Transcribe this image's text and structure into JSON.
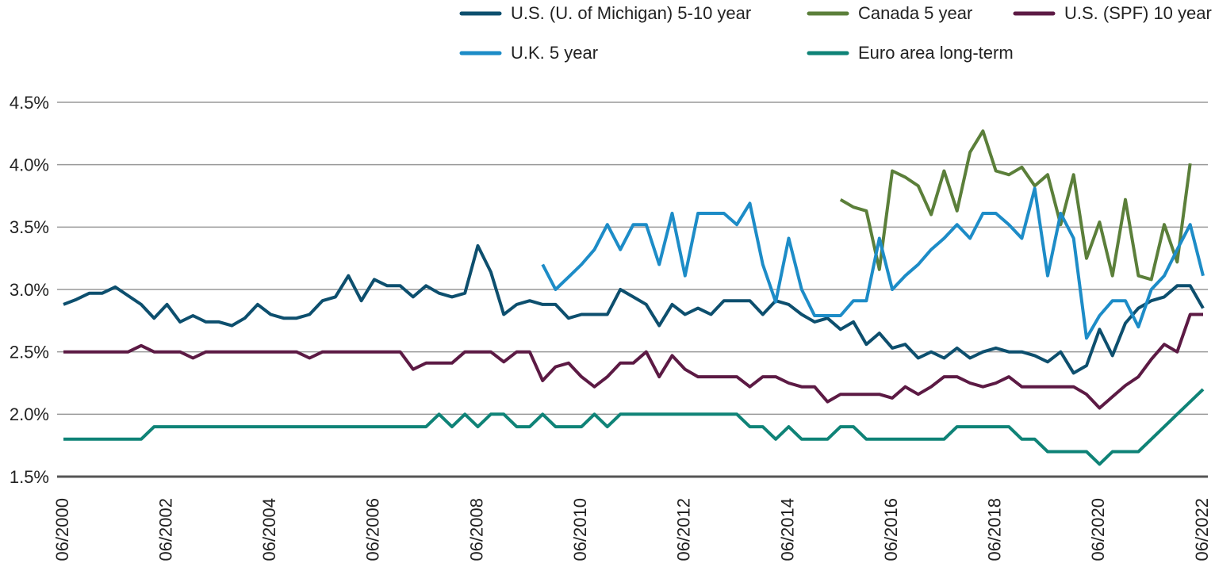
{
  "chart_data": {
    "type": "line",
    "x": [
      "06/2000",
      "09/2000",
      "12/2000",
      "03/2001",
      "06/2001",
      "09/2001",
      "12/2001",
      "03/2002",
      "06/2002",
      "09/2002",
      "12/2002",
      "03/2003",
      "06/2003",
      "09/2003",
      "12/2003",
      "03/2004",
      "06/2004",
      "09/2004",
      "12/2004",
      "03/2005",
      "06/2005",
      "09/2005",
      "12/2005",
      "03/2006",
      "06/2006",
      "09/2006",
      "12/2006",
      "03/2007",
      "06/2007",
      "09/2007",
      "12/2007",
      "03/2008",
      "06/2008",
      "09/2008",
      "12/2008",
      "03/2009",
      "06/2009",
      "09/2009",
      "12/2009",
      "03/2010",
      "06/2010",
      "09/2010",
      "12/2010",
      "03/2011",
      "06/2011",
      "09/2011",
      "12/2011",
      "03/2012",
      "06/2012",
      "09/2012",
      "12/2012",
      "03/2013",
      "06/2013",
      "09/2013",
      "12/2013",
      "03/2014",
      "06/2014",
      "09/2014",
      "12/2014",
      "03/2015",
      "06/2015",
      "09/2015",
      "12/2015",
      "03/2016",
      "06/2016",
      "09/2016",
      "12/2016",
      "03/2017",
      "06/2017",
      "09/2017",
      "12/2017",
      "03/2018",
      "06/2018",
      "09/2018",
      "12/2018",
      "03/2019",
      "06/2019",
      "09/2019",
      "12/2019",
      "03/2020",
      "06/2020",
      "09/2020",
      "12/2020",
      "03/2021",
      "06/2021",
      "09/2021",
      "12/2021",
      "03/2022",
      "06/2022"
    ],
    "xticks": [
      "06/2000",
      "06/2002",
      "06/2004",
      "06/2006",
      "06/2008",
      "06/2010",
      "06/2012",
      "06/2014",
      "06/2016",
      "06/2018",
      "06/2020",
      "06/2022"
    ],
    "ylim": [
      1.5,
      4.5
    ],
    "yticks": [
      {
        "value": 1.5,
        "label": "1.5%"
      },
      {
        "value": 2.0,
        "label": "2.0%"
      },
      {
        "value": 2.5,
        "label": "2.5%"
      },
      {
        "value": 3.0,
        "label": "3.0%"
      },
      {
        "value": 3.5,
        "label": "3.5%"
      },
      {
        "value": 4.0,
        "label": "4.0%"
      },
      {
        "value": 4.5,
        "label": "4.5%"
      }
    ],
    "grid": true,
    "legend": "top",
    "series": [
      {
        "name": "U.S. (U. of Michigan) 5-10 year",
        "color": "#0d4f6e",
        "values": [
          2.88,
          2.92,
          2.97,
          2.97,
          3.02,
          2.95,
          2.88,
          2.77,
          2.88,
          2.74,
          2.79,
          2.74,
          2.74,
          2.71,
          2.77,
          2.88,
          2.8,
          2.77,
          2.77,
          2.8,
          2.91,
          2.94,
          3.11,
          2.91,
          3.08,
          3.03,
          3.03,
          2.94,
          3.03,
          2.97,
          2.94,
          2.97,
          3.35,
          3.14,
          2.8,
          2.88,
          2.91,
          2.88,
          2.88,
          2.77,
          2.8,
          2.8,
          2.8,
          3.0,
          2.94,
          2.88,
          2.71,
          2.88,
          2.8,
          2.85,
          2.8,
          2.91,
          2.91,
          2.91,
          2.8,
          2.91,
          2.88,
          2.8,
          2.74,
          2.77,
          2.68,
          2.74,
          2.56,
          2.65,
          2.53,
          2.56,
          2.45,
          2.5,
          2.45,
          2.53,
          2.45,
          2.5,
          2.53,
          2.5,
          2.5,
          2.47,
          2.42,
          2.5,
          2.33,
          2.39,
          2.68,
          2.47,
          2.73,
          2.85,
          2.91,
          2.94,
          3.03,
          3.03,
          2.85
        ]
      },
      {
        "name": "Canada 5 year",
        "color": "#5b7f3a",
        "values": [
          null,
          null,
          null,
          null,
          null,
          null,
          null,
          null,
          null,
          null,
          null,
          null,
          null,
          null,
          null,
          null,
          null,
          null,
          null,
          null,
          null,
          null,
          null,
          null,
          null,
          null,
          null,
          null,
          null,
          null,
          null,
          null,
          null,
          null,
          null,
          null,
          null,
          null,
          null,
          null,
          null,
          null,
          null,
          null,
          null,
          null,
          null,
          null,
          null,
          null,
          null,
          null,
          null,
          null,
          null,
          null,
          null,
          null,
          null,
          null,
          3.72,
          3.66,
          3.63,
          3.16,
          3.95,
          3.9,
          3.83,
          3.6,
          3.95,
          3.63,
          4.1,
          4.27,
          3.95,
          3.92,
          3.98,
          3.83,
          3.92,
          3.52,
          3.92,
          3.25,
          3.54,
          3.11,
          3.72,
          3.11,
          3.08,
          3.52,
          3.22,
          4.01,
          null
        ]
      },
      {
        "name": "U.S. (SPF) 10 year",
        "color": "#5c1a44",
        "values": [
          2.5,
          2.5,
          2.5,
          2.5,
          2.5,
          2.5,
          2.55,
          2.5,
          2.5,
          2.5,
          2.45,
          2.5,
          2.5,
          2.5,
          2.5,
          2.5,
          2.5,
          2.5,
          2.5,
          2.45,
          2.5,
          2.5,
          2.5,
          2.5,
          2.5,
          2.5,
          2.5,
          2.36,
          2.41,
          2.41,
          2.41,
          2.5,
          2.5,
          2.5,
          2.42,
          2.5,
          2.5,
          2.27,
          2.38,
          2.41,
          2.3,
          2.22,
          2.3,
          2.41,
          2.41,
          2.5,
          2.3,
          2.47,
          2.36,
          2.3,
          2.3,
          2.3,
          2.3,
          2.22,
          2.3,
          2.3,
          2.25,
          2.22,
          2.22,
          2.1,
          2.16,
          2.16,
          2.16,
          2.16,
          2.13,
          2.22,
          2.16,
          2.22,
          2.3,
          2.3,
          2.25,
          2.22,
          2.25,
          2.3,
          2.22,
          2.22,
          2.22,
          2.22,
          2.22,
          2.16,
          2.05,
          2.14,
          2.23,
          2.3,
          2.44,
          2.56,
          2.5,
          2.8,
          2.8
        ]
      },
      {
        "name": "U.K. 5 year",
        "color": "#1d8cc7",
        "values": [
          null,
          null,
          null,
          null,
          null,
          null,
          null,
          null,
          null,
          null,
          null,
          null,
          null,
          null,
          null,
          null,
          null,
          null,
          null,
          null,
          null,
          null,
          null,
          null,
          null,
          null,
          null,
          null,
          null,
          null,
          null,
          null,
          null,
          null,
          null,
          null,
          null,
          3.2,
          3.0,
          3.1,
          3.2,
          3.32,
          3.52,
          3.32,
          3.52,
          3.52,
          3.2,
          3.61,
          3.11,
          3.61,
          3.61,
          3.61,
          3.52,
          3.69,
          3.2,
          2.9,
          3.41,
          3.0,
          2.79,
          2.79,
          2.79,
          2.91,
          2.91,
          3.41,
          3.0,
          3.11,
          3.2,
          3.32,
          3.41,
          3.52,
          3.41,
          3.61,
          3.61,
          3.52,
          3.41,
          3.81,
          3.11,
          3.61,
          3.41,
          2.61,
          2.79,
          2.91,
          2.91,
          2.7,
          3.0,
          3.11,
          3.32,
          3.52,
          3.11
        ]
      },
      {
        "name": "Euro area long-term",
        "color": "#0f8377",
        "values": [
          1.8,
          1.8,
          1.8,
          1.8,
          1.8,
          1.8,
          1.8,
          1.9,
          1.9,
          1.9,
          1.9,
          1.9,
          1.9,
          1.9,
          1.9,
          1.9,
          1.9,
          1.9,
          1.9,
          1.9,
          1.9,
          1.9,
          1.9,
          1.9,
          1.9,
          1.9,
          1.9,
          1.9,
          1.9,
          2.0,
          1.9,
          2.0,
          1.9,
          2.0,
          2.0,
          1.9,
          1.9,
          2.0,
          1.9,
          1.9,
          1.9,
          2.0,
          1.9,
          2.0,
          2.0,
          2.0,
          2.0,
          2.0,
          2.0,
          2.0,
          2.0,
          2.0,
          2.0,
          1.9,
          1.9,
          1.8,
          1.9,
          1.8,
          1.8,
          1.8,
          1.9,
          1.9,
          1.8,
          1.8,
          1.8,
          1.8,
          1.8,
          1.8,
          1.8,
          1.9,
          1.9,
          1.9,
          1.9,
          1.9,
          1.8,
          1.8,
          1.7,
          1.7,
          1.7,
          1.7,
          1.6,
          1.7,
          1.7,
          1.7,
          1.8,
          1.9,
          2.0,
          2.1,
          2.2
        ]
      }
    ]
  }
}
